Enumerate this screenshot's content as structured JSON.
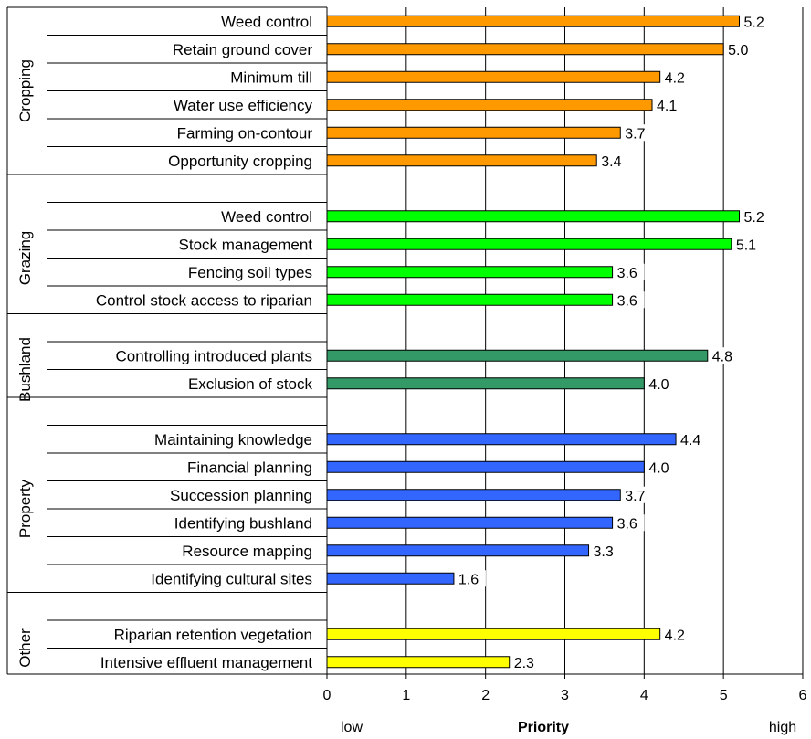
{
  "chart_data": {
    "type": "bar",
    "orientation": "horizontal",
    "xlim": [
      0,
      6
    ],
    "xticks": [
      "0",
      "1",
      "2",
      "3",
      "4",
      "5",
      "6"
    ],
    "xlabel": "Priority",
    "xlabel_low": "low",
    "xlabel_high": "high",
    "grid": "vertical",
    "groups": [
      {
        "name": "Cropping",
        "color": "#FF9900",
        "items": [
          {
            "label": "Weed control",
            "value": 5.2,
            "value_label": "5.2"
          },
          {
            "label": "Retain ground cover",
            "value": 5.0,
            "value_label": "5.0"
          },
          {
            "label": "Minimum till",
            "value": 4.2,
            "value_label": "4.2"
          },
          {
            "label": "Water use efficiency",
            "value": 4.1,
            "value_label": "4.1"
          },
          {
            "label": "Farming on-contour",
            "value": 3.7,
            "value_label": "3.7"
          },
          {
            "label": "Opportunity cropping",
            "value": 3.4,
            "value_label": "3.4"
          }
        ]
      },
      {
        "name": "Grazing",
        "color": "#00FF00",
        "items": [
          {
            "label": "Weed control",
            "value": 5.2,
            "value_label": "5.2"
          },
          {
            "label": "Stock management",
            "value": 5.1,
            "value_label": "5.1"
          },
          {
            "label": "Fencing soil types",
            "value": 3.6,
            "value_label": "3.6"
          },
          {
            "label": "Control stock access to riparian",
            "value": 3.6,
            "value_label": "3.6"
          }
        ]
      },
      {
        "name": "Bushland",
        "color": "#339966",
        "items": [
          {
            "label": "Controlling introduced plants",
            "value": 4.8,
            "value_label": "4.8"
          },
          {
            "label": "Exclusion of stock",
            "value": 4.0,
            "value_label": "4.0"
          }
        ]
      },
      {
        "name": "Property",
        "color": "#3366FF",
        "items": [
          {
            "label": "Maintaining knowledge",
            "value": 4.4,
            "value_label": "4.4"
          },
          {
            "label": "Financial planning",
            "value": 4.0,
            "value_label": "4.0"
          },
          {
            "label": "Succession planning",
            "value": 3.7,
            "value_label": "3.7"
          },
          {
            "label": "Identifying bushland",
            "value": 3.6,
            "value_label": "3.6"
          },
          {
            "label": "Resource mapping",
            "value": 3.3,
            "value_label": "3.3"
          },
          {
            "label": "Identifying cultural sites",
            "value": 1.6,
            "value_label": "1.6"
          }
        ]
      },
      {
        "name": "Other",
        "color": "#FFFF00",
        "items": [
          {
            "label": "Riparian retention  vegetation",
            "value": 4.2,
            "value_label": "4.2"
          },
          {
            "label": "Intensive effluent management",
            "value": 2.3,
            "value_label": "2.3"
          }
        ]
      }
    ]
  }
}
